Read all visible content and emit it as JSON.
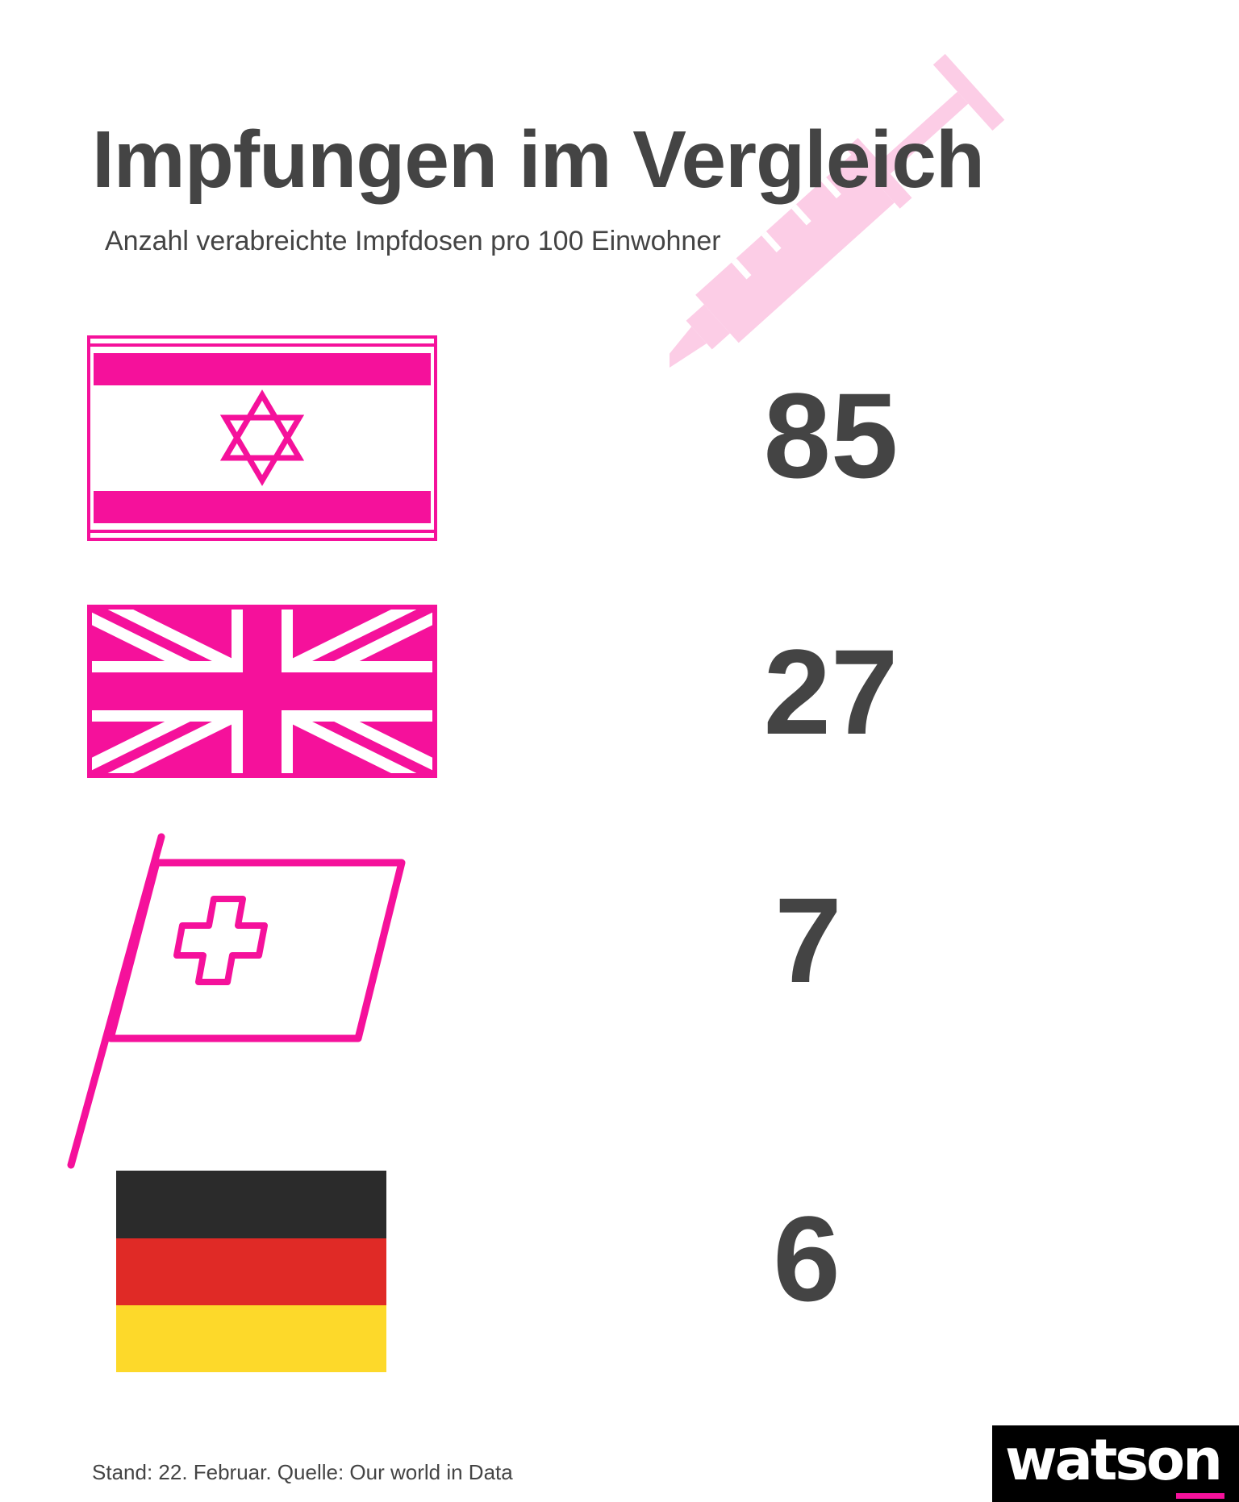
{
  "header": {
    "title": "Impfungen im Vergleich",
    "subtitle": "Anzahl verabreichte Impfdosen pro 100 Einwohner"
  },
  "countries": [
    {
      "flag_icon": "israel-flag-icon",
      "value": "85"
    },
    {
      "flag_icon": "uk-flag-icon",
      "value": "27"
    },
    {
      "flag_icon": "switzerland-flag-icon",
      "value": "7"
    },
    {
      "flag_icon": "germany-flag-icon",
      "value": "6"
    }
  ],
  "footer": {
    "note": "Stand: 22. Februar. Quelle: Our world in Data"
  },
  "logo": {
    "text": "watson"
  },
  "colors": {
    "accent": "#f5119b",
    "text": "#444444",
    "syringe": "#fccde6",
    "germany_black": "#2b2b2b",
    "germany_red": "#e02a26",
    "germany_gold": "#fdd92a"
  }
}
